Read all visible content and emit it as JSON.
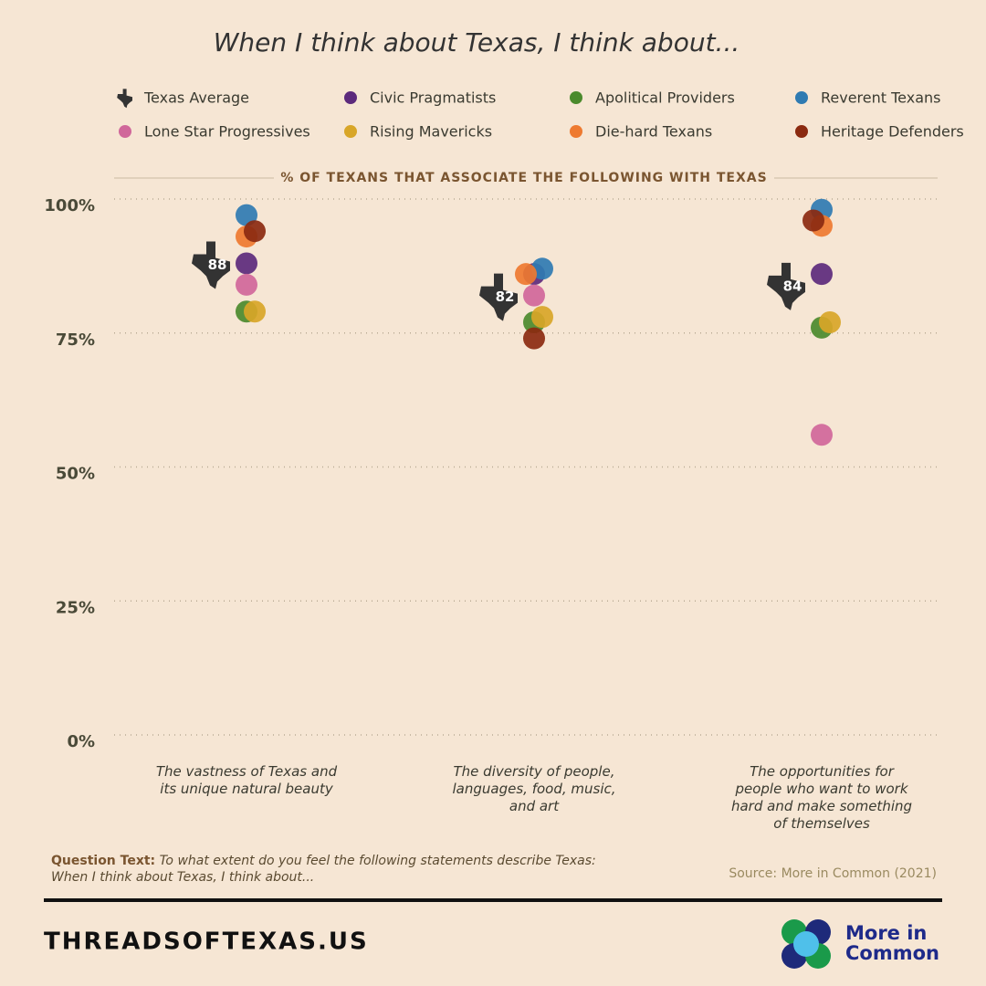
{
  "chart_data": {
    "type": "dot",
    "title": "When I think about Texas, I think about...",
    "subtitle": "% OF TEXANS THAT ASSOCIATE THE FOLLOWING WITH TEXAS",
    "categories": [
      "The vastness of Texas and its unique natural beauty",
      "The diversity of people, languages, food, music, and art",
      "The opportunities for people who want to work hard and make something of themselves"
    ],
    "ylim": [
      0,
      100
    ],
    "yticks": [
      {
        "value": 0,
        "label": "0%"
      },
      {
        "value": 25,
        "label": "25%"
      },
      {
        "value": 50,
        "label": "50%"
      },
      {
        "value": 75,
        "label": "75%"
      },
      {
        "value": 100,
        "label": "100%"
      }
    ],
    "grid": true,
    "series": [
      {
        "name": "Texas Average",
        "color": "#333333",
        "values": [
          88,
          82,
          84
        ]
      },
      {
        "name": "Civic Pragmatists",
        "color": "#5c2a7c",
        "values": [
          88,
          86,
          86
        ]
      },
      {
        "name": "Apolitical Providers",
        "color": "#4b8a2c",
        "values": [
          79,
          77,
          76
        ]
      },
      {
        "name": "Reverent Texans",
        "color": "#2f7bb2",
        "values": [
          97,
          87,
          98
        ]
      },
      {
        "name": "Lone Star Progressives",
        "color": "#d0679a",
        "values": [
          84,
          82,
          56
        ]
      },
      {
        "name": "Rising Mavericks",
        "color": "#d8a628",
        "values": [
          79,
          78,
          77
        ]
      },
      {
        "name": "Die-hard Texans",
        "color": "#ee7a30",
        "values": [
          93,
          86,
          95
        ]
      },
      {
        "name": "Heritage Defenders",
        "color": "#8b2a10",
        "values": [
          94,
          74,
          96
        ]
      }
    ]
  },
  "question_label": "Question Text:",
  "question_text": "To what extent do you feel the following statements describe Texas: When I think about Texas, I think about...",
  "source": "Source: More in Common (2021)",
  "footer": "THREADSOFTEXAS.US",
  "logo": [
    "More in",
    "Common"
  ]
}
